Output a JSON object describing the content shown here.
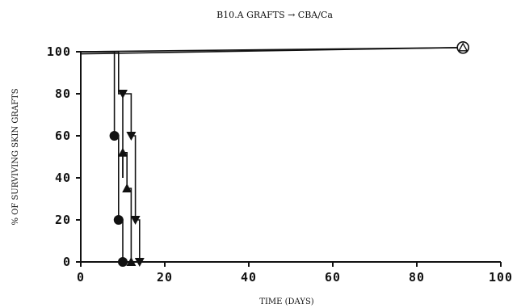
{
  "chart_data": {
    "type": "line",
    "title": "B10.A GRAFTS → CBA/Ca",
    "xlabel": "TIME (DAYS)",
    "ylabel": "% OF SURVIVING SKIN GRAFTS",
    "xlim": [
      0,
      100
    ],
    "ylim": [
      0,
      100
    ],
    "x_ticks": [
      "0",
      "20",
      "40",
      "60",
      "80",
      "100"
    ],
    "y_ticks": [
      "0",
      "20",
      "40",
      "60",
      "80",
      "100"
    ],
    "grid": false,
    "legend": "none",
    "series": [
      {
        "marker": "circle",
        "points": [
          [
            0,
            100
          ],
          [
            8,
            100
          ],
          [
            8,
            60
          ],
          [
            9,
            60
          ],
          [
            9,
            20
          ],
          [
            10,
            20
          ],
          [
            10,
            0
          ]
        ]
      },
      {
        "marker": "triangle-down",
        "points": [
          [
            0,
            100
          ],
          [
            9,
            100
          ],
          [
            9,
            80
          ],
          [
            10,
            80
          ],
          [
            10,
            40
          ]
        ]
      },
      {
        "marker": "triangle-up",
        "points": [
          [
            10,
            40
          ],
          [
            10,
            52
          ],
          [
            11,
            52
          ],
          [
            11,
            35
          ],
          [
            12,
            35
          ],
          [
            12,
            0
          ]
        ]
      },
      {
        "marker": "triangle-down",
        "points": [
          [
            10,
            80
          ],
          [
            12,
            80
          ],
          [
            12,
            60
          ],
          [
            13,
            60
          ],
          [
            13,
            20
          ],
          [
            14,
            20
          ],
          [
            14,
            0
          ]
        ]
      },
      {
        "marker": "circle-open",
        "points": [
          [
            0,
            99
          ],
          [
            91,
            102
          ]
        ]
      },
      {
        "marker": "triangle-up-open",
        "points": [
          [
            0,
            100
          ],
          [
            91,
            102
          ]
        ]
      }
    ],
    "markers": [
      {
        "shape": "circle",
        "x": 8,
        "y": 60
      },
      {
        "shape": "circle",
        "x": 9,
        "y": 20
      },
      {
        "shape": "circle",
        "x": 10,
        "y": 0
      },
      {
        "shape": "triangle-down",
        "x": 10,
        "y": 80
      },
      {
        "shape": "triangle-up",
        "x": 10,
        "y": 52
      },
      {
        "shape": "triangle-up",
        "x": 11,
        "y": 35
      },
      {
        "shape": "triangle-up",
        "x": 12,
        "y": 0
      },
      {
        "shape": "triangle-down",
        "x": 12,
        "y": 60
      },
      {
        "shape": "triangle-down",
        "x": 13,
        "y": 20
      },
      {
        "shape": "triangle-down",
        "x": 14,
        "y": 0
      },
      {
        "shape": "circle-open",
        "x": 91,
        "y": 102
      },
      {
        "shape": "triangle-up-open",
        "x": 91,
        "y": 102
      }
    ]
  }
}
